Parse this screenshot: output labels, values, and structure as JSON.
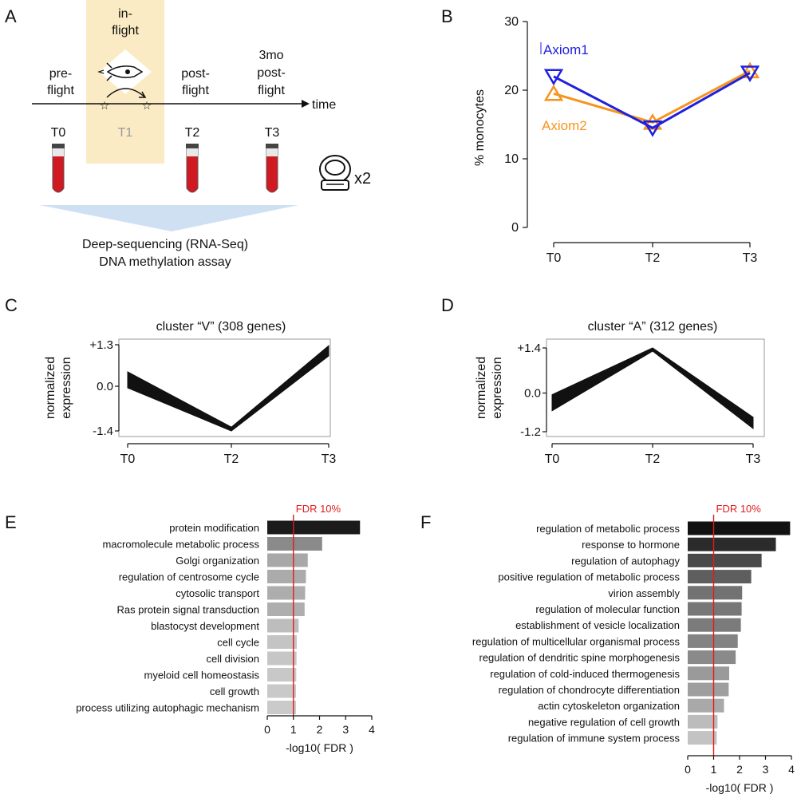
{
  "panel_letters": [
    "A",
    "B",
    "C",
    "D",
    "E",
    "F"
  ],
  "timeline": {
    "phases": {
      "pre": [
        "pre-",
        "flight"
      ],
      "in": [
        "in-",
        "flight"
      ],
      "post": [
        "post-",
        "flight"
      ],
      "three": [
        "3mo",
        "post-",
        "flight"
      ]
    },
    "time_label": "time",
    "timepoints": [
      "T0",
      "T1",
      "T2",
      "T3"
    ],
    "astronaut_multiplier": "x2",
    "assays": [
      "Deep-sequencing (RNA-Seq)",
      "DNA methylation assay"
    ],
    "colors": {
      "inflight_bg": "#fbebc4",
      "tube_red": "#d11922",
      "funnel": "#cfe0f3",
      "t1_text": "#9a9a9a"
    }
  },
  "chart_data": [
    {
      "id": "B",
      "type": "line",
      "title": "",
      "ylabel": "% monocytes",
      "xlabel": "",
      "categories": [
        "T0",
        "T2",
        "T3"
      ],
      "ylim": [
        0,
        30
      ],
      "yticks": [
        "0",
        "10",
        "20",
        "30"
      ],
      "series": [
        {
          "name": "Axiom1",
          "color": "#1f1fe0",
          "values": [
            22,
            14.5,
            22.5
          ]
        },
        {
          "name": "Axiom2",
          "color": "#f7941d",
          "values": [
            19.5,
            15.3,
            22.8
          ]
        }
      ]
    },
    {
      "id": "C",
      "type": "line",
      "title": "cluster “V” (308 genes)",
      "ylabel": [
        "normalized",
        "expression"
      ],
      "categories": [
        "T0",
        "T2",
        "T3"
      ],
      "ylim": [
        -1.4,
        1.3
      ],
      "yticks": [
        "+1.3",
        "0.0",
        "-1.4"
      ],
      "band": {
        "upper": [
          0.45,
          -1.28,
          1.27
        ],
        "lower": [
          -0.05,
          -1.4,
          0.95
        ]
      }
    },
    {
      "id": "D",
      "type": "line",
      "title": "cluster “A” (312 genes)",
      "ylabel": [
        "normalized",
        "expression"
      ],
      "categories": [
        "T0",
        "T2",
        "T3"
      ],
      "ylim": [
        -1.2,
        1.4
      ],
      "yticks": [
        "+1.4",
        "0.0",
        "-1.2"
      ],
      "band": {
        "upper": [
          -0.05,
          1.4,
          -0.75
        ],
        "lower": [
          -0.55,
          1.3,
          -1.1
        ]
      }
    },
    {
      "id": "E",
      "type": "bar",
      "orientation": "horizontal",
      "threshold_label": "FDR 10%",
      "threshold_value": 1,
      "xlabel": "-log10( FDR )",
      "xlim": [
        0,
        4
      ],
      "xticks": [
        "0",
        "1",
        "2",
        "3",
        "4"
      ],
      "categories": [
        "protein modification",
        "macromolecule metabolic process",
        "Golgi organization",
        "regulation of centrosome cycle",
        "cytosolic transport",
        "Ras protein signal transduction",
        "blastocyst development",
        "cell cycle",
        "cell division",
        "myeloid cell homeostasis",
        "cell growth",
        "process utilizing autophagic mechanism"
      ],
      "values": [
        3.55,
        2.1,
        1.55,
        1.48,
        1.45,
        1.43,
        1.2,
        1.13,
        1.12,
        1.11,
        1.1,
        1.1
      ],
      "bar_colors": [
        "#1b1b1b",
        "#8a8a8a",
        "#a8a8a8",
        "#ababab",
        "#adadad",
        "#aeaeae",
        "#bdbdbd",
        "#c4c4c4",
        "#c6c6c6",
        "#c8c8c8",
        "#c9c9c9",
        "#cacaca"
      ]
    },
    {
      "id": "F",
      "type": "bar",
      "orientation": "horizontal",
      "threshold_label": "FDR 10%",
      "threshold_value": 1,
      "xlabel": "-log10( FDR )",
      "xlim": [
        0,
        4
      ],
      "xticks": [
        "0",
        "1",
        "2",
        "3",
        "4"
      ],
      "categories": [
        "regulation of metabolic process",
        "response to hormone",
        "regulation of autophagy",
        "positive regulation of metabolic process",
        "virion assembly",
        "regulation of molecular function",
        "establishment of vesicle localization",
        "regulation of multicellular organismal process",
        "regulation of dendritic spine morphogenesis",
        "regulation of cold-induced thermogenesis",
        "regulation of chondrocyte differentiation",
        "actin cytoskeleton organization",
        "negative regulation of cell growth",
        "regulation of immune system process"
      ],
      "values": [
        3.95,
        3.4,
        2.85,
        2.45,
        2.1,
        2.08,
        2.05,
        1.93,
        1.85,
        1.6,
        1.58,
        1.4,
        1.15,
        1.12
      ],
      "bar_colors": [
        "#111111",
        "#2b2b2b",
        "#4a4a4a",
        "#5e5e5e",
        "#727272",
        "#777777",
        "#7b7b7b",
        "#838383",
        "#8a8a8a",
        "#9a9a9a",
        "#9e9e9e",
        "#a9a9a9",
        "#bcbcbc",
        "#c3c3c3"
      ]
    }
  ],
  "threshold_color": "#e31a1c"
}
